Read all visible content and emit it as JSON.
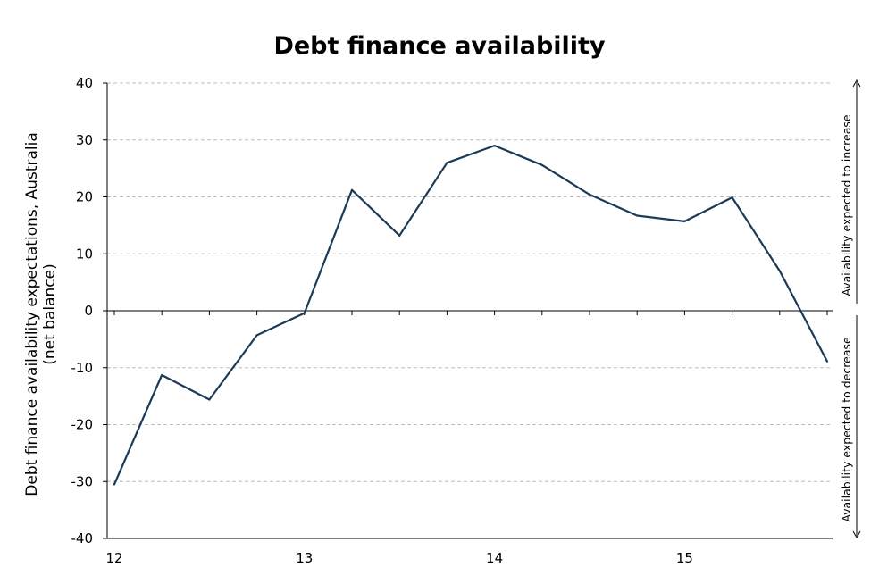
{
  "chart_data": {
    "type": "line",
    "title": "Debt finance availability",
    "ylabel_line1": "Debt finance availability expectations, Australia",
    "ylabel_line2": "(net balance)",
    "xlabel": "",
    "ylim": [
      -40,
      40
    ],
    "yticks": [
      -40,
      -30,
      -20,
      -10,
      0,
      10,
      20,
      30,
      40
    ],
    "xlim": [
      12,
      15.75
    ],
    "xticks": [
      12,
      13,
      14,
      15
    ],
    "xticklabels": [
      "12",
      "13",
      "14",
      "15"
    ],
    "grid": true,
    "line_color": "#1b3a57",
    "series": [
      {
        "x": [
          12,
          12.25,
          12.5,
          12.75,
          13,
          13.25,
          13.5,
          13.75,
          14,
          14.25,
          14.5,
          14.75,
          15,
          15.25,
          15.5,
          15.75
        ],
        "values": [
          -30.5,
          -11.3,
          -15.6,
          -4.3,
          -0.4,
          21.2,
          13.2,
          26.0,
          29.0,
          25.6,
          20.4,
          16.7,
          15.7,
          19.9,
          7.0,
          -8.9
        ]
      }
    ],
    "annotations": {
      "upper": "Availability  expected to increase",
      "lower": "Availability  expected to decrease"
    }
  }
}
